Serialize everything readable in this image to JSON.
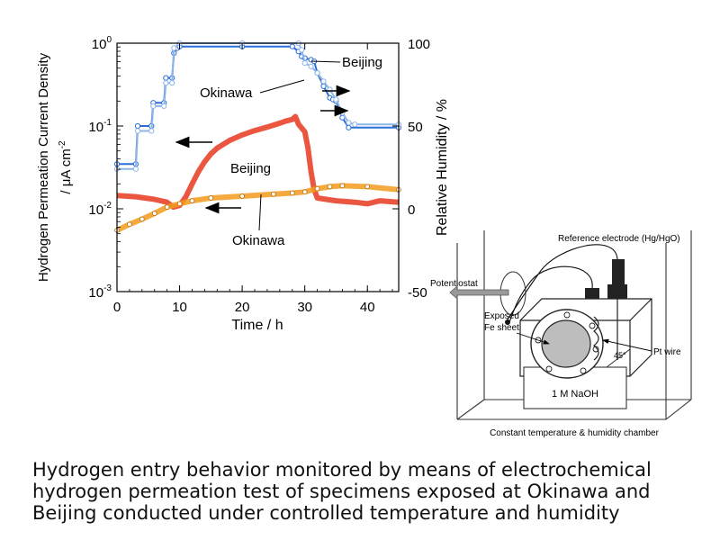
{
  "chart_data": {
    "type": "line",
    "x_axis": {
      "label": "Time / h",
      "range": [
        0,
        45
      ],
      "ticks": [
        0,
        10,
        20,
        30,
        40
      ]
    },
    "y_left": {
      "label_line1": "Hydrogen Permeation Current Density",
      "label_line2": "/ μA cm",
      "label_sup": "-2",
      "scale": "log",
      "range": [
        0.001,
        1
      ],
      "ticks": [
        {
          "value": 1,
          "mant": "10",
          "exp": "0"
        },
        {
          "value": 0.1,
          "mant": "10",
          "exp": "-1"
        },
        {
          "value": 0.01,
          "mant": "10",
          "exp": "-2"
        },
        {
          "value": 0.001,
          "mant": "10",
          "exp": "-3"
        }
      ]
    },
    "y_right": {
      "label": "Relative Humidity / %",
      "range": [
        -50,
        100
      ],
      "ticks": [
        -50,
        0,
        50,
        100
      ]
    },
    "series": [
      {
        "name": "Beijing",
        "axis": "left",
        "color": "#e8381f",
        "points": [
          [
            0,
            0.0145
          ],
          [
            3,
            0.014
          ],
          [
            6,
            0.013
          ],
          [
            8,
            0.012
          ],
          [
            9,
            0.0105
          ],
          [
            10,
            0.011
          ],
          [
            11,
            0.014
          ],
          [
            12,
            0.02
          ],
          [
            13,
            0.028
          ],
          [
            14,
            0.037
          ],
          [
            15,
            0.046
          ],
          [
            16,
            0.054
          ],
          [
            18,
            0.067
          ],
          [
            20,
            0.078
          ],
          [
            22,
            0.088
          ],
          [
            24,
            0.097
          ],
          [
            26,
            0.108
          ],
          [
            27,
            0.115
          ],
          [
            28,
            0.12
          ],
          [
            28.5,
            0.13
          ],
          [
            29,
            0.105
          ],
          [
            30,
            0.085
          ],
          [
            30.5,
            0.055
          ],
          [
            31,
            0.028
          ],
          [
            31.5,
            0.017
          ],
          [
            32,
            0.0135
          ],
          [
            35,
            0.0125
          ],
          [
            38,
            0.012
          ],
          [
            40,
            0.0115
          ],
          [
            42,
            0.0125
          ],
          [
            45,
            0.012
          ]
        ]
      },
      {
        "name": "Okinawa",
        "axis": "left",
        "color": "#f39b1d",
        "points": [
          [
            0,
            0.0055
          ],
          [
            2,
            0.0065
          ],
          [
            4,
            0.0075
          ],
          [
            6,
            0.0088
          ],
          [
            8,
            0.0105
          ],
          [
            10,
            0.0115
          ],
          [
            12,
            0.0125
          ],
          [
            15,
            0.0135
          ],
          [
            20,
            0.0142
          ],
          [
            25,
            0.015
          ],
          [
            28,
            0.0155
          ],
          [
            30,
            0.016
          ],
          [
            32,
            0.0175
          ],
          [
            34,
            0.0185
          ],
          [
            36,
            0.019
          ],
          [
            40,
            0.0185
          ],
          [
            45,
            0.017
          ]
        ]
      },
      {
        "name": "Beijing",
        "axis": "right",
        "color": "#2a6fd6",
        "points": [
          [
            0,
            27
          ],
          [
            3,
            27
          ],
          [
            3.3,
            50
          ],
          [
            5.5,
            50
          ],
          [
            5.8,
            64
          ],
          [
            7.5,
            64
          ],
          [
            7.8,
            79
          ],
          [
            8.8,
            79
          ],
          [
            9.1,
            94
          ],
          [
            9.6,
            97
          ],
          [
            10,
            98
          ],
          [
            20,
            98
          ],
          [
            28,
            98
          ],
          [
            29,
            95
          ],
          [
            29.5,
            92
          ],
          [
            30,
            91
          ],
          [
            31,
            90
          ],
          [
            31.5,
            89
          ],
          [
            32,
            82
          ],
          [
            33,
            74
          ],
          [
            34,
            67
          ],
          [
            34.5,
            66
          ],
          [
            35,
            65
          ],
          [
            35.5,
            60
          ],
          [
            36,
            55
          ],
          [
            37,
            49
          ],
          [
            45,
            49
          ]
        ]
      },
      {
        "name": "Okinawa",
        "axis": "right",
        "color": "#8fb5e8",
        "points": [
          [
            0,
            24
          ],
          [
            3,
            24
          ],
          [
            3.3,
            47
          ],
          [
            5.5,
            47
          ],
          [
            5.8,
            62
          ],
          [
            7.5,
            62
          ],
          [
            7.8,
            76
          ],
          [
            8.8,
            76
          ],
          [
            9.1,
            97
          ],
          [
            10,
            100
          ],
          [
            20,
            100
          ],
          [
            29,
            100
          ],
          [
            29.5,
            96
          ],
          [
            30,
            88
          ],
          [
            31,
            86
          ],
          [
            32,
            82
          ],
          [
            33,
            77
          ],
          [
            34,
            72
          ],
          [
            35,
            66
          ],
          [
            36,
            58
          ],
          [
            37,
            52
          ],
          [
            38,
            51
          ],
          [
            45,
            51
          ]
        ]
      }
    ],
    "annotations": [
      {
        "text": "Beijing",
        "near": "blue curve, top-right"
      },
      {
        "text": "Okinawa",
        "near": "blue curve, upper-middle"
      },
      {
        "text": "Beijing",
        "near": "red curve, middle"
      },
      {
        "text": "Okinawa",
        "near": "orange curve, bottom"
      }
    ]
  },
  "apparatus": {
    "reference_electrode": "Reference electrode (Hg/HgO)",
    "potentiostat": "Potentiostat",
    "exposed_line1": "Exposed",
    "exposed_line2": "Fe sheet",
    "pt_wire": "Pt wire",
    "angle": "45°",
    "electrolyte": "1 M NaOH",
    "chamber": "Constant temperature & humidity chamber"
  },
  "caption": {
    "line1": "Hydrogen entry behavior monitored by means of electrochemical",
    "line2": "hydrogen permeation test of specimens exposed at Okinawa and",
    "line3": "Beijing conducted under controlled temperature and humidity"
  }
}
